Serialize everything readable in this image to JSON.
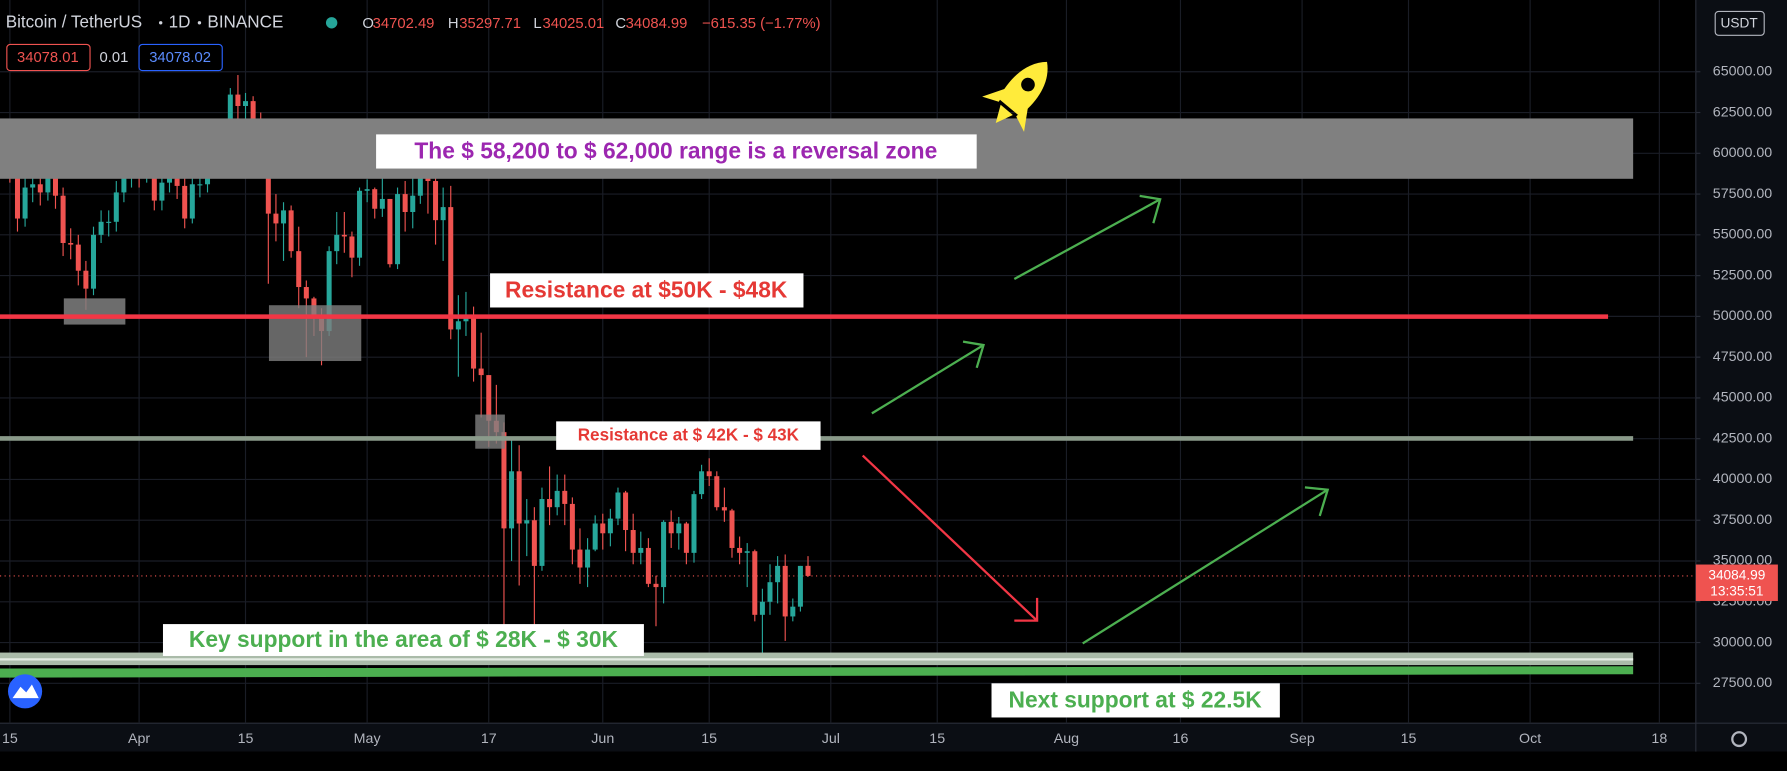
{
  "chart_data": {
    "type": "candlestick",
    "title": "Bitcoin / TetherUS",
    "interval": "1D",
    "exchange": "BINANCE",
    "ohlc_labels": [
      "O",
      "H",
      "L",
      "C"
    ],
    "change": "−615.35 (−1.77%)",
    "bid": 34078.01,
    "spread": 0.01,
    "ask": 34078.02,
    "currency": "USDT",
    "countdown": "13:35:51",
    "up_color": "#26a69a",
    "down_color": "#ef5350",
    "grid": true,
    "open": [
      60000,
      61200,
      59000,
      56000,
      57900,
      58100,
      57600,
      58800,
      57400,
      54500,
      54400,
      52800,
      51700,
      55000,
      55800,
      55800,
      57600,
      58800,
      58800,
      58700,
      59000,
      57100,
      58200,
      59100,
      58000,
      56000,
      58100,
      58100,
      59800,
      59800,
      60000,
      63600,
      62900,
      63200,
      61500,
      60100,
      56300,
      55700,
      56500,
      54000,
      51800,
      51100,
      50100,
      49100,
      54000,
      55000,
      54900,
      53600,
      57700,
      57800,
      56600,
      57200,
      53200,
      57500,
      56400,
      57400,
      58900,
      58300,
      55900,
      56700,
      49200,
      49700,
      49900,
      46800,
      46400,
      43600,
      42900,
      37000,
      40500,
      37300,
      37500,
      34700,
      38800,
      38300,
      39300,
      38500,
      35700,
      34600,
      35700,
      37300,
      36700,
      37600,
      39200,
      36900,
      35500,
      35800,
      33600,
      33400,
      37400,
      36700,
      37300,
      35500,
      39100,
      40500,
      40200,
      38300,
      38100,
      35800,
      35500,
      35600,
      31700,
      32500,
      33700,
      34700,
      31600,
      32200,
      34702.49
    ],
    "high": [
      62000,
      61800,
      59600,
      58500,
      58900,
      58700,
      59500,
      59200,
      57900,
      55400,
      55000,
      53400,
      55500,
      56500,
      56500,
      58300,
      59600,
      59500,
      59500,
      60000,
      59500,
      58800,
      59700,
      59500,
      58600,
      58600,
      58700,
      60300,
      60500,
      61000,
      64000,
      64800,
      63700,
      63500,
      62500,
      61600,
      57500,
      57000,
      56800,
      55500,
      52200,
      51200,
      50500,
      54300,
      56400,
      56400,
      55200,
      57900,
      58400,
      57900,
      58900,
      57200,
      57900,
      58300,
      58600,
      59500,
      59300,
      59600,
      57900,
      58000,
      51300,
      51500,
      50600,
      49000,
      46400,
      45800,
      43500,
      42400,
      42100,
      38800,
      38300,
      39500,
      40800,
      40300,
      40300,
      38900,
      37000,
      36400,
      37800,
      37900,
      38200,
      39500,
      39300,
      37900,
      36800,
      36400,
      34100,
      37500,
      38100,
      37700,
      37400,
      39300,
      40900,
      41300,
      40500,
      39500,
      38200,
      36500,
      36100,
      35700,
      33300,
      34800,
      35300,
      35400,
      32700,
      34700,
      35297.71
    ],
    "low": [
      58800,
      58200,
      55200,
      55500,
      57000,
      56800,
      57100,
      56600,
      53700,
      53500,
      51900,
      50400,
      51300,
      54500,
      54900,
      55200,
      57000,
      57900,
      57900,
      58200,
      56500,
      56500,
      57600,
      57200,
      55400,
      55700,
      57300,
      57600,
      59100,
      59300,
      59800,
      61300,
      62000,
      60100,
      59600,
      52000,
      54600,
      53400,
      53600,
      50500,
      47500,
      48800,
      47000,
      48800,
      53200,
      53900,
      52400,
      53100,
      57000,
      56000,
      56100,
      53000,
      52900,
      55200,
      55400,
      56900,
      56300,
      54400,
      53400,
      48600,
      46300,
      48800,
      46000,
      43800,
      42000,
      42200,
      30000,
      35000,
      33500,
      35300,
      31100,
      34400,
      37200,
      37800,
      37200,
      34800,
      33600,
      33400,
      35600,
      35700,
      35900,
      37200,
      35600,
      34800,
      34800,
      33400,
      31000,
      32400,
      35800,
      35700,
      34800,
      34900,
      38800,
      39600,
      38100,
      37400,
      35200,
      34800,
      33400,
      31300,
      28800,
      31700,
      32400,
      30100,
      31300,
      31900,
      34025.01
    ],
    "close": [
      61200,
      59000,
      56000,
      57900,
      58100,
      57600,
      58800,
      57400,
      54500,
      54400,
      52800,
      51700,
      55000,
      55800,
      55800,
      57600,
      58800,
      58800,
      58700,
      59000,
      57100,
      58200,
      59100,
      58000,
      56000,
      58100,
      58100,
      59800,
      59800,
      60000,
      63600,
      62900,
      63200,
      61500,
      60100,
      56300,
      55700,
      56500,
      54000,
      51800,
      51100,
      50100,
      49100,
      54000,
      55000,
      54900,
      53600,
      57700,
      57800,
      56600,
      57200,
      53200,
      57500,
      56400,
      57400,
      58900,
      58300,
      55900,
      56700,
      49200,
      49700,
      49900,
      46800,
      46400,
      43600,
      42900,
      37000,
      40500,
      37300,
      37500,
      34700,
      38800,
      38300,
      39300,
      38500,
      35700,
      34600,
      35700,
      37300,
      36700,
      37600,
      39200,
      36900,
      35500,
      35800,
      33600,
      33400,
      37400,
      36700,
      37300,
      35500,
      39100,
      40500,
      40200,
      38300,
      38100,
      35800,
      35500,
      35600,
      31700,
      32500,
      33700,
      34700,
      31600,
      32200,
      34700,
      34084.99
    ],
    "xlim": [
      -0.3,
      222.8
    ],
    "xticks": [
      {
        "value": 1,
        "label": "15"
      },
      {
        "value": 18,
        "label": "Apr"
      },
      {
        "value": 32,
        "label": "15"
      },
      {
        "value": 48,
        "label": "May"
      },
      {
        "value": 64,
        "label": "17"
      },
      {
        "value": 79,
        "label": "Jun"
      },
      {
        "value": 93,
        "label": "15"
      },
      {
        "value": 109,
        "label": "Jul"
      },
      {
        "value": 123,
        "label": "15"
      },
      {
        "value": 140,
        "label": "Aug"
      },
      {
        "value": 155,
        "label": "16"
      },
      {
        "value": 171,
        "label": "Sep"
      },
      {
        "value": 185,
        "label": "15"
      },
      {
        "value": 201,
        "label": "Oct"
      },
      {
        "value": 218,
        "label": "18"
      }
    ],
    "ylim": [
      25056,
      69400
    ],
    "yticks": [
      {
        "value": 27500,
        "label": "27500.00"
      },
      {
        "value": 30000,
        "label": "30000.00"
      },
      {
        "value": 32500,
        "label": "32500.00"
      },
      {
        "value": 35000,
        "label": "35000.00"
      },
      {
        "value": 37500,
        "label": "37500.00"
      },
      {
        "value": 40000,
        "label": "40000.00"
      },
      {
        "value": 42500,
        "label": "42500.00"
      },
      {
        "value": 45000,
        "label": "45000.00"
      },
      {
        "value": 47500,
        "label": "47500.00"
      },
      {
        "value": 50000,
        "label": "50000.00"
      },
      {
        "value": 52500,
        "label": "52500.00"
      },
      {
        "value": 55000,
        "label": "55000.00"
      },
      {
        "value": 57500,
        "label": "57500.00"
      },
      {
        "value": 60000,
        "label": "60000.00"
      },
      {
        "value": 62500,
        "label": "62500.00"
      },
      {
        "value": 65000,
        "label": "65000.00"
      }
    ],
    "annotations": [
      "The $ 58,200 to $ 62,000 range is a reversal zone",
      "Resistance at $50K - $48K",
      "Resistance at $ 42K - $ 43K",
      "Key support in the area of $ 28K - $ 30K",
      "Next support at $ 22.5K"
    ]
  }
}
